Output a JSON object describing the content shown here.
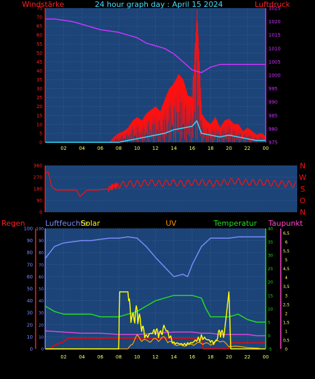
{
  "header": {
    "left_label": "Windstärke",
    "title": "24 hour graph day : April 15 2024",
    "right_label": "Luftdruck"
  },
  "panel3_header": {
    "regen": "Regen",
    "luftfeuchte": "Luftfeuchte",
    "solar": "Solar",
    "uv": "UV",
    "temperatur": "Temperatur",
    "taupunkt": "Taupunkt"
  },
  "colors": {
    "plot_bg": "#1c4478",
    "grid": "#4a78b0",
    "wind": "#ff1010",
    "pressure": "#cc33ff",
    "wind_cyan": "#30e0ff",
    "dir_label": "#ff1010",
    "humidity": "#7a8cff",
    "solar": "#ffff00",
    "uv": "#ffa500",
    "temperature": "#22dd22",
    "dewpoint": "#dd44dd",
    "rain": "#ff0000"
  },
  "chart_data": [
    {
      "type": "line",
      "panel": "wind-pressure",
      "title": "24 hour graph day : April 15 2024",
      "ylabel": "Windstärke",
      "y2label": "Luftdruck",
      "x_ticks": [
        "02",
        "04",
        "06",
        "08",
        "10",
        "12",
        "14",
        "16",
        "18",
        "20",
        "22",
        "00"
      ],
      "y_ticks": [
        "0",
        "5",
        "10",
        "15",
        "20",
        "25",
        "30",
        "35",
        "40",
        "45",
        "50",
        "55",
        "60",
        "65",
        "70",
        "75"
      ],
      "y2_ticks": [
        "975",
        "980",
        "985",
        "990",
        "995",
        "1000",
        "1005",
        "1010",
        "1015",
        "1020",
        "1025"
      ],
      "ylim": [
        0,
        75
      ],
      "y2lim": [
        975,
        1025
      ],
      "series": [
        {
          "axis": "y2",
          "x": [
            0,
            1,
            2,
            3,
            4,
            5,
            6,
            7,
            8,
            9,
            10,
            11,
            12,
            13,
            14,
            15,
            16,
            17,
            18,
            19,
            20,
            21,
            22,
            23,
            24
          ],
          "values": [
            1021,
            1021,
            1020.5,
            1020,
            1019,
            1018,
            1017,
            1016.5,
            1016,
            1015,
            1014,
            1012,
            1011,
            1010,
            1008,
            1005,
            1002,
            1001,
            1003,
            1004,
            1004,
            1004,
            1004,
            1004,
            1004
          ]
        },
        {
          "axis": "y",
          "x": [
            0,
            7,
            7.5,
            8,
            8.5,
            9,
            9.5,
            10,
            10.5,
            11,
            11.5,
            12,
            12.5,
            13,
            13.5,
            14,
            14.5,
            15,
            15.5,
            16,
            16.5,
            17,
            17.5,
            18,
            18.5,
            19,
            19.5,
            20,
            20.5,
            21,
            21.5,
            22,
            22.5,
            23,
            23.5,
            24
          ],
          "values": [
            0,
            0,
            3,
            5,
            6,
            8,
            12,
            14,
            12,
            16,
            18,
            20,
            17,
            24,
            30,
            33,
            38,
            35,
            26,
            25,
            74,
            16,
            12,
            10,
            14,
            8,
            12,
            13,
            10,
            10,
            6,
            8,
            6,
            4,
            5,
            3
          ]
        },
        {
          "axis": "y",
          "x": [
            0,
            8,
            9,
            10,
            11,
            12,
            13,
            14,
            15,
            16,
            16.5,
            17,
            18,
            19,
            20,
            21,
            22,
            23,
            24
          ],
          "values": [
            0,
            0,
            1,
            2,
            3,
            4,
            5,
            7,
            8,
            9,
            12,
            5,
            4,
            3,
            4,
            3,
            2,
            1,
            1
          ]
        }
      ]
    },
    {
      "type": "scatter",
      "panel": "wind-direction",
      "y_ticks": [
        "0",
        "90",
        "180",
        "270",
        "360"
      ],
      "right_labels": [
        "N",
        "W",
        "S",
        "O",
        "N"
      ],
      "ylim": [
        0,
        360
      ],
      "x": [
        0,
        0.3,
        0.6,
        1,
        2,
        3,
        3.3,
        4,
        5,
        6,
        6.5,
        7,
        8,
        9,
        10,
        11,
        12,
        13,
        14,
        15,
        16,
        17,
        18,
        19,
        20,
        21,
        22,
        23,
        24
      ],
      "values": [
        300,
        310,
        200,
        170,
        170,
        170,
        120,
        170,
        170,
        180,
        200,
        210,
        220,
        220,
        230,
        220,
        230,
        220,
        230,
        230,
        220,
        230,
        240,
        230,
        230,
        230,
        220,
        220,
        210
      ]
    },
    {
      "type": "line",
      "panel": "weather",
      "x_ticks": [
        "02",
        "04",
        "06",
        "08",
        "10",
        "12",
        "14",
        "16",
        "18",
        "20",
        "22",
        "00"
      ],
      "regen_ticks": [
        "0",
        "10",
        "20",
        "30",
        "40",
        "50",
        "60",
        "70",
        "80",
        "90",
        "100"
      ],
      "feuchte_ticks": [
        "0",
        "10",
        "20",
        "30",
        "40",
        "50",
        "60",
        "70",
        "80",
        "90",
        "100"
      ],
      "temp_ticks": [
        "-5",
        "0",
        "5",
        "10",
        "15",
        "20",
        "25",
        "30",
        "35",
        "40"
      ],
      "tau_ticks": [
        "0",
        "0,5",
        "1",
        "1,5",
        "2",
        "2,5",
        "3",
        "3,5",
        "4",
        "4,5",
        "5",
        "5,5",
        "6",
        "6,5"
      ],
      "series": [
        {
          "axis": "humidity",
          "x": [
            0,
            1,
            2,
            3,
            4,
            5,
            6,
            7,
            8,
            9,
            10,
            11,
            12,
            13,
            14,
            15,
            15.5,
            16,
            17,
            18,
            19,
            20,
            21,
            22,
            23,
            24
          ],
          "values": [
            75,
            85,
            88,
            89,
            90,
            90,
            91,
            92,
            92,
            93,
            92,
            85,
            76,
            68,
            60,
            62,
            60,
            70,
            85,
            92,
            92,
            92,
            93,
            93,
            93,
            93
          ]
        },
        {
          "axis": "temperature",
          "x": [
            0,
            1,
            2,
            3,
            4,
            5,
            6,
            7,
            8,
            9,
            10,
            11,
            12,
            13,
            14,
            15,
            16,
            17,
            17.5,
            18,
            19,
            20,
            21,
            22,
            23,
            24
          ],
          "values": [
            11,
            9,
            8,
            8,
            8,
            8,
            7,
            7,
            7,
            8,
            9,
            11,
            13,
            14,
            15,
            15,
            15,
            14,
            10,
            7,
            7,
            7,
            8,
            6,
            5,
            5
          ]
        },
        {
          "axis": "dewpoint",
          "x": [
            0,
            2,
            4,
            6,
            8,
            10,
            12,
            14,
            16,
            17,
            18,
            19,
            20,
            21,
            22,
            23,
            24
          ],
          "values": [
            15,
            14,
            13,
            13,
            12,
            12,
            13,
            14,
            14,
            13,
            13,
            12,
            12,
            12,
            12,
            11,
            11
          ]
        },
        {
          "axis": "rain",
          "x": [
            0,
            0.5,
            1,
            2,
            2.5,
            3,
            8,
            8.5,
            17,
            17.2,
            17.5,
            20,
            20.2,
            22,
            24
          ],
          "values": [
            0,
            0,
            3,
            6,
            9,
            9,
            9,
            9,
            9,
            0,
            0,
            0,
            5,
            5,
            5
          ]
        },
        {
          "axis": "solar",
          "x": [
            0,
            8,
            8.1,
            9,
            9.5,
            10,
            10.5,
            11,
            12,
            12.5,
            13,
            14,
            15,
            16,
            17,
            18,
            18.5,
            19,
            19.5,
            20,
            20.2,
            24
          ],
          "values": [
            0,
            0,
            3.2,
            3.2,
            2,
            2.5,
            1.5,
            0.8,
            1.2,
            1,
            1.4,
            0.4,
            0.3,
            0.4,
            0.8,
            0.5,
            0.4,
            1.2,
            0.9,
            3.2,
            0,
            0
          ]
        },
        {
          "axis": "uv",
          "x": [
            0,
            9,
            10,
            11,
            12,
            13,
            14,
            15,
            16,
            17,
            18,
            19,
            20,
            24
          ],
          "values": [
            0,
            0,
            0.8,
            0.5,
            0.6,
            0.7,
            0.3,
            0.2,
            0.3,
            0.4,
            0.3,
            0.6,
            0.2,
            0
          ]
        }
      ]
    }
  ]
}
